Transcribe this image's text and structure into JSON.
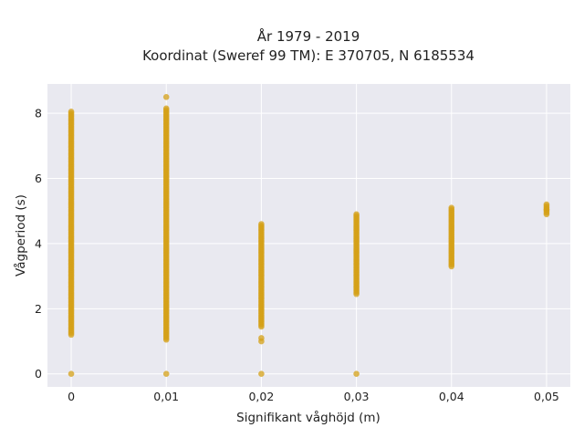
{
  "chart_data": {
    "type": "scatter",
    "title": "År 1979 - 2019",
    "subtitle": "Koordinat (Sweref 99 TM): E 370705, N 6185534",
    "xlabel": "Signifikant våghöjd (m)",
    "ylabel": "Vågperiod (s)",
    "xlim": [
      -0.0025,
      0.0525
    ],
    "ylim": [
      -0.4,
      8.9
    ],
    "x_ticks": [
      0,
      0.01,
      0.02,
      0.03,
      0.04,
      0.05
    ],
    "x_tick_labels": [
      "0",
      "0,01",
      "0,02",
      "0,03",
      "0,04",
      "0,05"
    ],
    "y_ticks": [
      0,
      2,
      4,
      6,
      8
    ],
    "y_tick_labels": [
      "0",
      "2",
      "4",
      "6",
      "8"
    ],
    "grid": true,
    "legend": "none",
    "marker_color": "#D4A017",
    "plot_background": "#E9E9F0",
    "series": [
      {
        "groups": [
          {
            "x": 0.0,
            "y_min": 1.2,
            "y_max": 8.05,
            "extra_y": [
              0
            ]
          },
          {
            "x": 0.01,
            "y_min": 1.05,
            "y_max": 8.15,
            "extra_y": [
              0,
              8.5
            ]
          },
          {
            "x": 0.02,
            "y_min": 1.45,
            "y_max": 4.6,
            "extra_y": [
              0,
              1.0,
              1.1
            ]
          },
          {
            "x": 0.03,
            "y_min": 2.45,
            "y_max": 4.9,
            "extra_y": [
              0
            ]
          },
          {
            "x": 0.04,
            "y_min": 3.3,
            "y_max": 5.1,
            "extra_y": []
          },
          {
            "x": 0.05,
            "y_min": 4.9,
            "y_max": 5.2,
            "extra_y": [
              5.05
            ]
          }
        ]
      }
    ]
  }
}
